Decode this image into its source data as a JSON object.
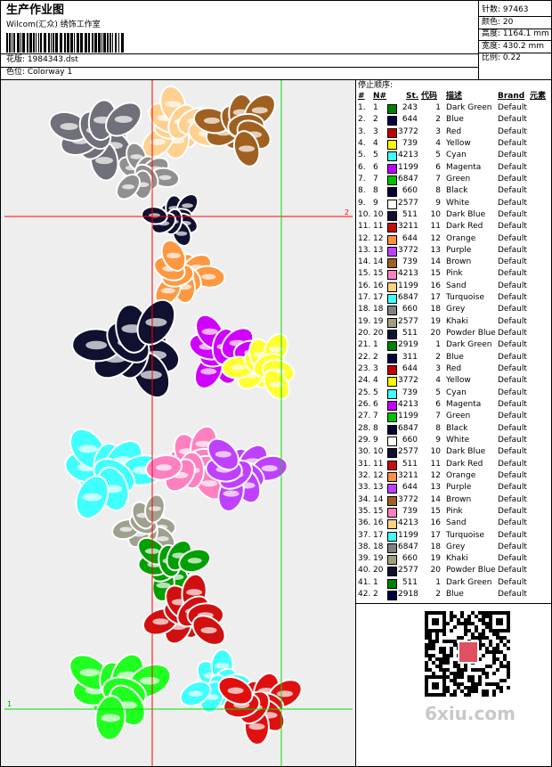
{
  "header": {
    "title": "生产作业图",
    "studio": "Wilcom(汇众) 绣饰工作室",
    "design": "花版: 1984343.dst",
    "colorway": "色位: Colorway 1"
  },
  "info": [
    "针数: 97463",
    "颜色: 20",
    "高度: 1164.1 mm",
    "宽度: 430.2 mm",
    "比例: 0.22"
  ],
  "table": {
    "title": "停止顺序:",
    "columns": [
      "#",
      "N#",
      "St.",
      "代码",
      "描述",
      "Brand",
      "元素"
    ],
    "rows": [
      [
        "1.",
        "1",
        "#008000",
        "243",
        "1",
        "Dark Green",
        "Default"
      ],
      [
        "2.",
        "2",
        "#000040",
        "644",
        "2",
        "Blue",
        "Default"
      ],
      [
        "3.",
        "3",
        "#c00000",
        "3772",
        "3",
        "Red",
        "Default"
      ],
      [
        "4.",
        "4",
        "#ffff00",
        "739",
        "4",
        "Yellow",
        "Default"
      ],
      [
        "5.",
        "5",
        "#40ffff",
        "4213",
        "5",
        "Cyan",
        "Default"
      ],
      [
        "6.",
        "6",
        "#c000ff",
        "1199",
        "6",
        "Magenta",
        "Default"
      ],
      [
        "7.",
        "7",
        "#00c000",
        "6847",
        "7",
        "Green",
        "Default"
      ],
      [
        "8.",
        "8",
        "#000030",
        "660",
        "8",
        "Black",
        "Default"
      ],
      [
        "9.",
        "9",
        "#ffffff",
        "2577",
        "9",
        "White",
        "Default"
      ],
      [
        "10.",
        "10",
        "#101030",
        "511",
        "10",
        "Dark Blue",
        "Default"
      ],
      [
        "11.",
        "11",
        "#c01010",
        "3211",
        "11",
        "Dark Red",
        "Default"
      ],
      [
        "12.",
        "12",
        "#ff9040",
        "644",
        "12",
        "Orange",
        "Default"
      ],
      [
        "13.",
        "13",
        "#c040ff",
        "3772",
        "13",
        "Purple",
        "Default"
      ],
      [
        "14.",
        "14",
        "#a06020",
        "739",
        "14",
        "Brown",
        "Default"
      ],
      [
        "15.",
        "15",
        "#ff80c0",
        "4213",
        "15",
        "Pink",
        "Default"
      ],
      [
        "16.",
        "16",
        "#ffd080",
        "1199",
        "16",
        "Sand",
        "Default"
      ],
      [
        "17.",
        "17",
        "#40ffff",
        "6847",
        "17",
        "Turquoise",
        "Default"
      ],
      [
        "18.",
        "18",
        "#808080",
        "660",
        "18",
        "Grey",
        "Default"
      ],
      [
        "19.",
        "19",
        "#a0a080",
        "2577",
        "19",
        "Khaki",
        "Default"
      ],
      [
        "20.",
        "20",
        "#101030",
        "511",
        "20",
        "Powder Blue",
        "Default"
      ],
      [
        "21.",
        "1",
        "#008000",
        "2919",
        "1",
        "Dark Green",
        "Default"
      ],
      [
        "22.",
        "2",
        "#000040",
        "311",
        "2",
        "Blue",
        "Default"
      ],
      [
        "23.",
        "3",
        "#c00000",
        "644",
        "3",
        "Red",
        "Default"
      ],
      [
        "24.",
        "4",
        "#ffff00",
        "3772",
        "4",
        "Yellow",
        "Default"
      ],
      [
        "25.",
        "5",
        "#40ffff",
        "739",
        "5",
        "Cyan",
        "Default"
      ],
      [
        "26.",
        "6",
        "#c000ff",
        "4213",
        "6",
        "Magenta",
        "Default"
      ],
      [
        "27.",
        "7",
        "#00c000",
        "1199",
        "7",
        "Green",
        "Default"
      ],
      [
        "28.",
        "8",
        "#000030",
        "6847",
        "8",
        "Black",
        "Default"
      ],
      [
        "29.",
        "9",
        "#ffffff",
        "660",
        "9",
        "White",
        "Default"
      ],
      [
        "30.",
        "10",
        "#101030",
        "2577",
        "10",
        "Dark Blue",
        "Default"
      ],
      [
        "31.",
        "11",
        "#c01010",
        "511",
        "11",
        "Dark Red",
        "Default"
      ],
      [
        "32.",
        "12",
        "#ff9040",
        "3211",
        "12",
        "Orange",
        "Default"
      ],
      [
        "33.",
        "13",
        "#c040ff",
        "644",
        "13",
        "Purple",
        "Default"
      ],
      [
        "34.",
        "14",
        "#a06020",
        "3772",
        "14",
        "Brown",
        "Default"
      ],
      [
        "35.",
        "15",
        "#ff80c0",
        "739",
        "15",
        "Pink",
        "Default"
      ],
      [
        "36.",
        "16",
        "#ffd080",
        "4213",
        "16",
        "Sand",
        "Default"
      ],
      [
        "37.",
        "17",
        "#40ffff",
        "1199",
        "17",
        "Turquoise",
        "Default"
      ],
      [
        "38.",
        "18",
        "#808080",
        "6847",
        "18",
        "Grey",
        "Default"
      ],
      [
        "39.",
        "19",
        "#a0a080",
        "660",
        "19",
        "Khaki",
        "Default"
      ],
      [
        "40.",
        "20",
        "#101030",
        "2577",
        "20",
        "Powder Blue",
        "Default"
      ],
      [
        "41.",
        "1",
        "#008000",
        "511",
        "1",
        "Dark Green",
        "Default"
      ],
      [
        "42.",
        "2",
        "#000040",
        "2918",
        "2",
        "Blue",
        "Default"
      ]
    ]
  },
  "design_area": {
    "markers": [
      "1",
      "2"
    ]
  },
  "watermark": "6xiu.com"
}
